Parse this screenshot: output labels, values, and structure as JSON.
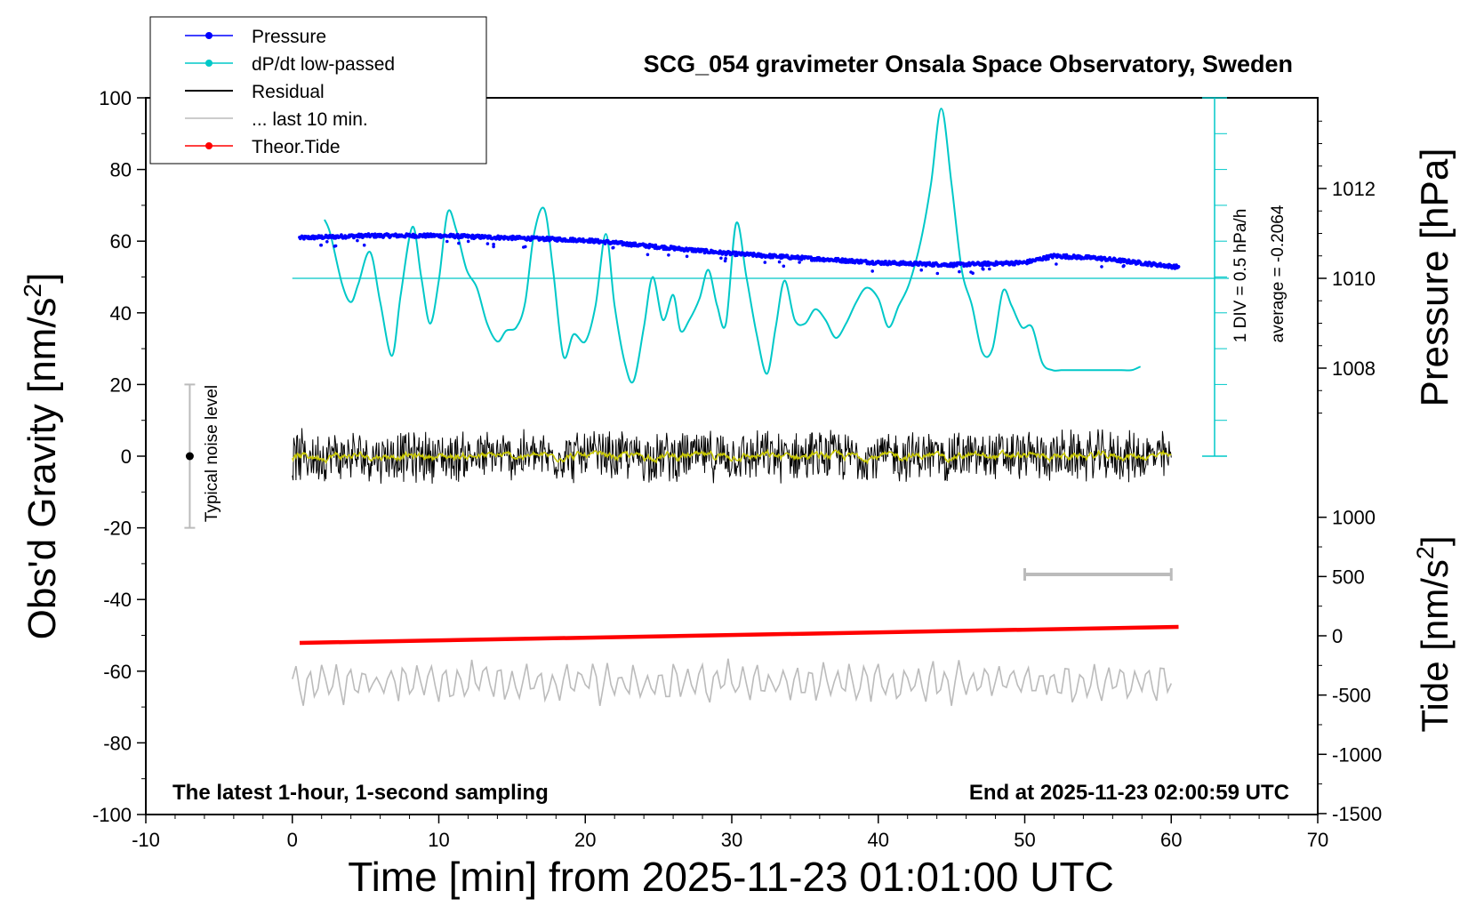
{
  "chart_data": {
    "type": "line",
    "title": "SCG_054 gravimeter Onsala Space Observatory, Sweden",
    "xlabel": "Time [min] from 2025-11-23 01:01:00 UTC",
    "ylabel_left": "Obs'd Gravity [nm/s",
    "ylabel_left_sup": "2",
    "ylabel_left_end": "]",
    "ylabel_right_top": "Pressure [hPa]",
    "ylabel_right_bottom": "Tide [nm/s",
    "ylabel_right_bottom_sup": "2",
    "ylabel_right_bottom_end": "]",
    "xlim": [
      -10,
      70
    ],
    "ylim": [
      -100,
      100
    ],
    "xticks": [
      "-10",
      "0",
      "10",
      "20",
      "30",
      "40",
      "50",
      "60",
      "70"
    ],
    "yticks_left": [
      "100",
      "80",
      "60",
      "40",
      "20",
      "0",
      "-20",
      "-40",
      "-60",
      "-80",
      "-100"
    ],
    "yticks_pressure": [
      "1012",
      "1010",
      "1008"
    ],
    "yticks_tide": [
      "1000",
      "500",
      "0",
      "-500",
      "-1000",
      "-1500"
    ],
    "footer_left": "The latest 1-hour, 1-second sampling",
    "footer_right": "End at 2025-11-23 02:00:59 UTC",
    "scale_bar_label": "1 DIV = 0.5 hPa/h",
    "average_label": "average = -0.2064",
    "noise_label": "Typical noise level",
    "legend": [
      {
        "name": "Pressure",
        "color": "#0000ff",
        "marker": true
      },
      {
        "name": "dP/dt low-passed",
        "color": "#00c8c8",
        "marker": true
      },
      {
        "name": "Residual",
        "color": "#000000",
        "marker": false
      },
      {
        "name": "... last 10 min.",
        "color": "#bbbbbb",
        "marker": false
      },
      {
        "name": "Theor.Tide",
        "color": "#ff0000",
        "marker": true
      }
    ],
    "series": [
      {
        "name": "Pressure",
        "axis": "pressure_hPa",
        "x": [
          0.5,
          5,
          10,
          15,
          20,
          25,
          30,
          35,
          40,
          45,
          50,
          52,
          55,
          60.5
        ],
        "values": [
          1010.9,
          1010.95,
          1010.95,
          1010.9,
          1010.85,
          1010.7,
          1010.55,
          1010.45,
          1010.35,
          1010.3,
          1010.35,
          1010.5,
          1010.45,
          1010.25
        ]
      },
      {
        "name": "dP/dt low-passed",
        "axis": "left",
        "x": [
          2.2,
          2.6,
          3.4,
          4.0,
          4.5,
          5.3,
          6.0,
          6.8,
          7.4,
          8.2,
          8.8,
          9.4,
          10.0,
          10.6,
          11.2,
          11.9,
          12.6,
          13.3,
          14.0,
          14.6,
          15.3,
          15.9,
          16.5,
          17.2,
          17.8,
          18.5,
          19.2,
          20.0,
          20.7,
          21.4,
          22.0,
          22.7,
          23.3,
          24.0,
          24.6,
          25.3,
          26.0,
          26.5,
          27.1,
          27.8,
          28.4,
          29.0,
          29.6,
          30.3,
          31.0,
          31.7,
          32.4,
          33.0,
          33.6,
          34.3,
          35.0,
          35.7,
          36.4,
          37.1,
          37.8,
          38.5,
          39.2,
          40.0,
          40.7,
          41.4,
          42.1,
          42.9,
          43.6,
          44.3,
          45.0,
          45.7,
          46.4,
          47.1,
          47.8,
          48.5,
          49.1,
          49.8,
          50.5,
          51.2,
          51.9,
          52.5,
          53.2,
          53.9,
          54.6,
          55.3,
          55.9,
          56.6,
          57.3,
          57.9
        ],
        "values": [
          66,
          62,
          48,
          43,
          48,
          57,
          43,
          28,
          45,
          64,
          50,
          37,
          49,
          68,
          63,
          52,
          47,
          37,
          32,
          35,
          36,
          43,
          62,
          69,
          52,
          28,
          34,
          32,
          42,
          62,
          42,
          26,
          21,
          36,
          50,
          38,
          45,
          35,
          38,
          44,
          52,
          42,
          37,
          65,
          50,
          34,
          23,
          36,
          49,
          38,
          37,
          41,
          38,
          33,
          37,
          43,
          47,
          44,
          36,
          42,
          48,
          60,
          76,
          97,
          76,
          52,
          42,
          29,
          30,
          46,
          42,
          36,
          36,
          26,
          24,
          24,
          24,
          24,
          24,
          24,
          24,
          24,
          24,
          25
        ]
      },
      {
        "name": "Residual",
        "axis": "left",
        "x_range": [
          0,
          60
        ],
        "mean": 0,
        "amplitude": 8
      },
      {
        "name": "... last 10 min.",
        "axis": "left",
        "x_range": [
          0,
          60
        ],
        "mean": -63,
        "amplitude": 6
      },
      {
        "name": "Theor.Tide",
        "axis": "tide_nm_s2",
        "x": [
          0.5,
          60.5
        ],
        "values": [
          -60,
          75
        ]
      }
    ],
    "noise_bar": {
      "x": -7,
      "center": 0,
      "half_range": 20
    },
    "last10_bar": {
      "x_start": 50,
      "x_end": 60
    },
    "pressure_baseline_hPa": 1010
  }
}
